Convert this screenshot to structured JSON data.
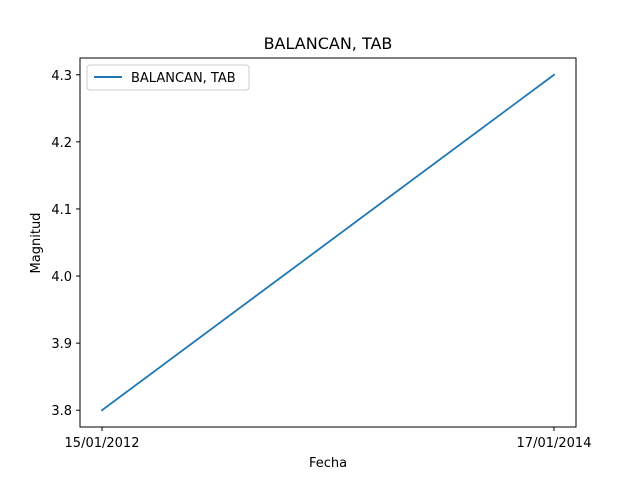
{
  "chart_data": {
    "type": "line",
    "title": "BALANCAN, TAB",
    "xlabel": "Fecha",
    "ylabel": "Magnitud",
    "x": [
      "15/01/2012",
      "17/01/2014"
    ],
    "series": [
      {
        "name": "BALANCAN, TAB",
        "values": [
          3.8,
          4.3
        ],
        "color": "#1f77b4"
      }
    ],
    "ylim": [
      3.775,
      4.325
    ],
    "yticks": [
      3.8,
      3.9,
      4.0,
      4.1,
      4.2,
      4.3
    ],
    "ytick_labels": [
      "3.8",
      "3.9",
      "4.0",
      "4.1",
      "4.2",
      "4.3"
    ],
    "xtick_labels": [
      "15/01/2012",
      "17/01/2014"
    ],
    "grid": false,
    "legend": "top-left"
  }
}
